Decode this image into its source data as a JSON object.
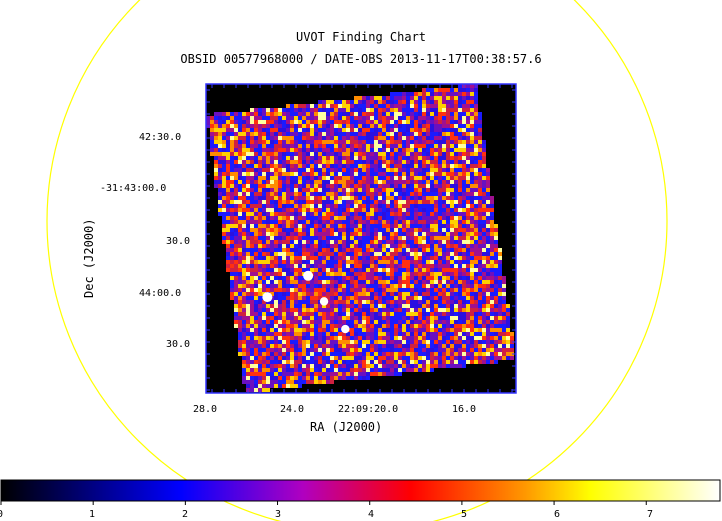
{
  "title": "UVOT Finding Chart",
  "subtitle": "OBSID 00577968000 / DATE-OBS 2013-11-17T00:38:57.6",
  "colors": {
    "frame": "#3333ff",
    "circle": "#ffff00",
    "background": "#000000"
  },
  "chart_data": {
    "type": "heatmap",
    "xlabel": "RA (J2000)",
    "ylabel": "Dec (J2000)",
    "x_ticks": [
      "28.0",
      "24.0",
      "22:09:20.0",
      "16.0"
    ],
    "y_ticks": [
      "42:30.0",
      "-31:43:00.0",
      "30.0",
      "44:00.0",
      "30.0"
    ],
    "colorbar": {
      "ticks": [
        "0",
        "1",
        "2",
        "3",
        "4",
        "5",
        "6",
        "7"
      ],
      "range": [
        0,
        7.8
      ],
      "colormap": [
        "#000000",
        "#0000ff",
        "#ff0000",
        "#ffff00",
        "#ffffff"
      ]
    },
    "sources": [
      {
        "ra_offset_s": 5.2,
        "dec": "-31:43:50",
        "brightness": 1.0
      },
      {
        "ra_offset_s": 2.9,
        "dec": "-31:44:00",
        "brightness": 1.0
      },
      {
        "ra_offset_s": 6.1,
        "dec": "-31:44:02",
        "brightness": 0.8
      },
      {
        "ra_offset_s": 7.3,
        "dec": "-31:44:15",
        "brightness": 0.8
      }
    ]
  }
}
